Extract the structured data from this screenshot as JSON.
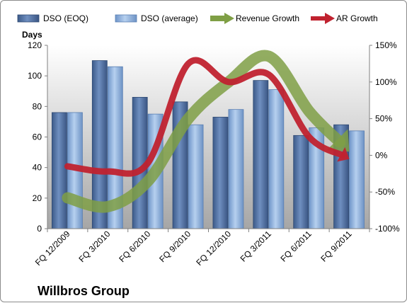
{
  "chart_data": {
    "type": "bar",
    "company": "Willbros Group",
    "ylabel": "Days",
    "ylim": [
      0,
      120
    ],
    "y_ticks": [
      "0",
      "20",
      "40",
      "60",
      "80",
      "100",
      "120"
    ],
    "y2lim": [
      -100,
      150
    ],
    "y2_ticks": [
      "-100%",
      "-50%",
      "0%",
      "50%",
      "100%",
      "150%"
    ],
    "categories": [
      "FQ 12/2009",
      "FQ 3/2010",
      "FQ 6/2010",
      "FQ 9/2010",
      "FQ 12/2010",
      "FQ 3/2011",
      "FQ 6/2011",
      "FQ 9/2011"
    ],
    "series": [
      {
        "name": "DSO (EOQ)",
        "kind": "bar",
        "axis": "left",
        "color": "#4f6d9b",
        "values": [
          76,
          110,
          86,
          83,
          73,
          97,
          61,
          68
        ]
      },
      {
        "name": "DSO (average)",
        "kind": "bar",
        "axis": "left",
        "color": "#8fb1dd",
        "values": [
          76,
          106,
          75,
          68,
          78,
          91,
          66,
          64
        ]
      },
      {
        "name": "Revenue Growth",
        "kind": "arrow-line",
        "axis": "right",
        "color": "#7f9f45",
        "values": [
          -58,
          -70,
          -35,
          50,
          100,
          135,
          60,
          5
        ]
      },
      {
        "name": "AR Growth",
        "kind": "arrow-line",
        "axis": "right",
        "color": "#c0222f",
        "values": [
          -15,
          -22,
          -10,
          125,
          100,
          110,
          25,
          -5
        ]
      }
    ],
    "grid": false,
    "legend_position": "top"
  }
}
